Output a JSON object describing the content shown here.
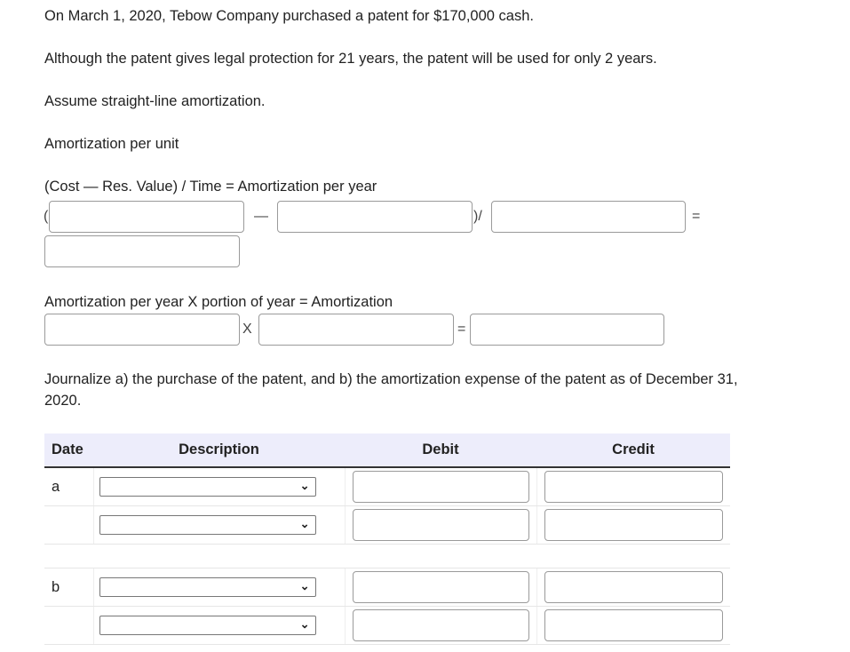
{
  "problem": {
    "line1": "On March 1, 2020, Tebow Company purchased a patent for $170,000 cash.",
    "line2": "Although the patent gives legal protection for 21 years, the patent will be used for only 2 years.",
    "line3": "Assume straight-line amortization.",
    "line4": "Amortization per unit"
  },
  "formula1": {
    "label": "(Cost  —  Res. Value) / Time = Amortization per year",
    "open_paren": "(",
    "minus": "—",
    "close_div": ")/",
    "equals": "="
  },
  "formula2": {
    "label": "Amortization per year X portion of year = Amortization",
    "times": "X",
    "equals": "="
  },
  "journal": {
    "instruction_line1": "Journalize a) the purchase of the patent, and b) the amortization expense of the patent as of December 31,",
    "instruction_line2": "2020.",
    "headers": [
      "Date",
      "Description",
      "Debit",
      "Credit"
    ],
    "entries": [
      {
        "date": "a",
        "rows": 2
      },
      {
        "date": "b",
        "rows": 2
      }
    ],
    "dropdown_icon": "chevron-down-icon"
  }
}
